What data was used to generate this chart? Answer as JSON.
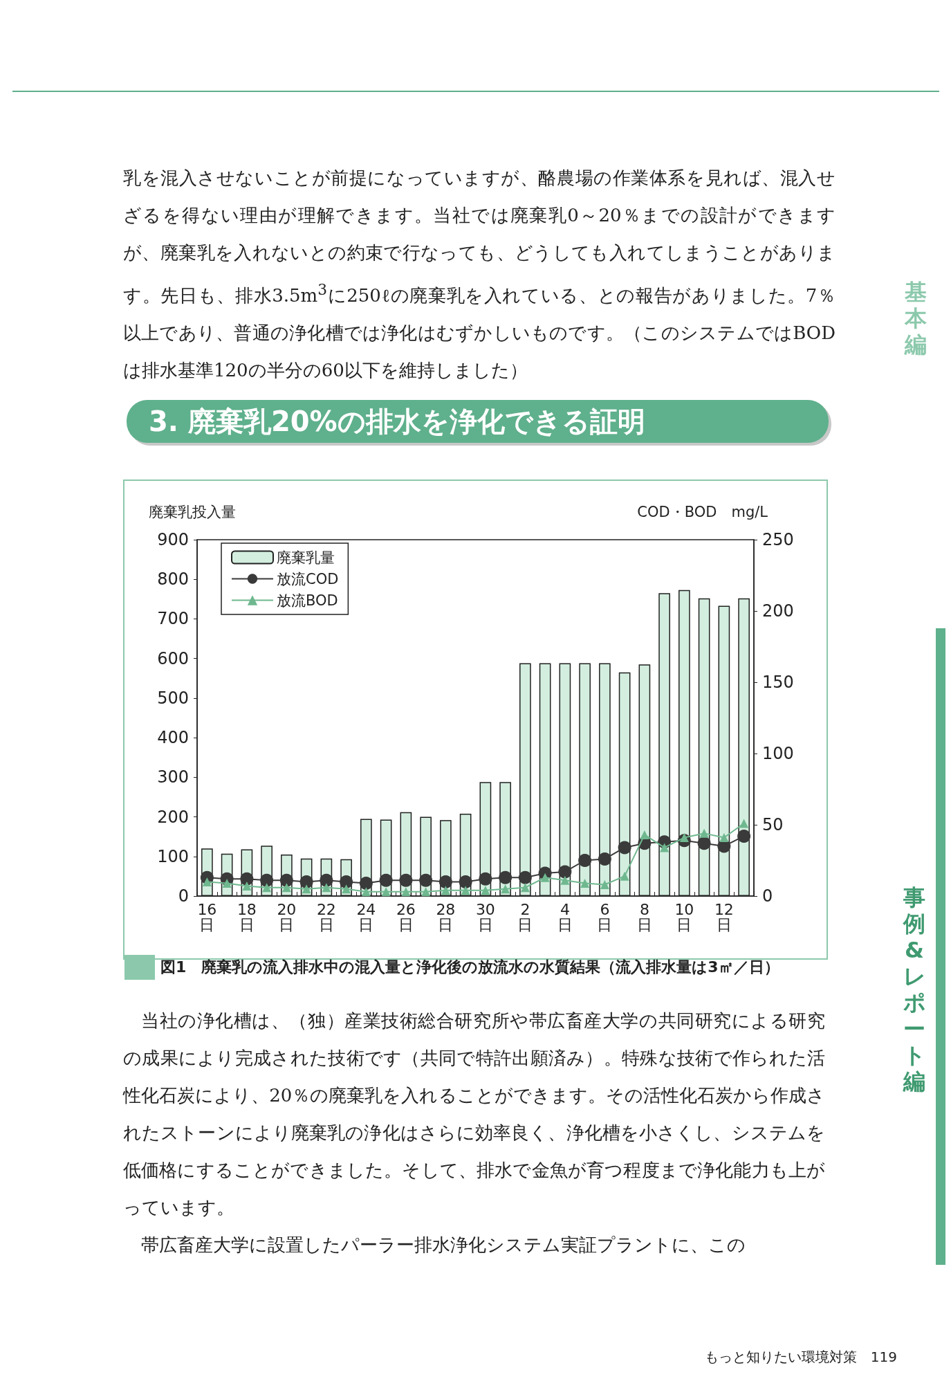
{
  "chart_data": {
    "type": "bar",
    "title": "3. 廃棄乳20%の排水を浄化できる証明",
    "ylabel": "廃棄乳投入量",
    "y2label": "COD・BOD　mg/L",
    "categories": [
      "16\n日",
      null,
      "18\n日",
      null,
      "20\n日",
      null,
      "22\n日",
      null,
      "24\n日",
      null,
      "26\n日",
      null,
      "28\n日",
      null,
      "30\n日",
      null,
      "2\n日",
      null,
      "4\n日",
      null,
      "6\n日",
      null,
      "8\n日",
      null,
      "10\n日",
      null,
      "12\n日",
      null
    ],
    "series": [
      {
        "name": "廃棄乳量",
        "color": "#d3eedf",
        "values": [
          120,
          107,
          118,
          127,
          105,
          95,
          95,
          93,
          195,
          193,
          212,
          200,
          192,
          208,
          288,
          288,
          588,
          588,
          588,
          588,
          588,
          565,
          585,
          765,
          773,
          752,
          733,
          752
        ]
      },
      {
        "name": "放流COD",
        "type": "line",
        "axis": "y2",
        "color": "#3a3a3a",
        "marker": "circle",
        "values": [
          13,
          12,
          12,
          11,
          11,
          10,
          11,
          10,
          9,
          11,
          11,
          11,
          10,
          10,
          12,
          13,
          13,
          16,
          17,
          25,
          26,
          34,
          37,
          38,
          39,
          37,
          35,
          42
        ]
      },
      {
        "name": "放流BOD",
        "type": "line",
        "axis": "y2",
        "color": "#6fb88f",
        "marker": "triangle",
        "values": [
          10,
          9,
          7,
          6,
          6,
          5,
          6,
          5,
          3,
          3,
          3,
          3,
          4,
          4,
          4,
          5,
          6,
          13,
          11,
          9,
          8,
          14,
          43,
          34,
          41,
          44,
          41,
          51
        ]
      }
    ],
    "ylim": [
      0,
      900
    ],
    "yticks": [
      0,
      100,
      200,
      300,
      400,
      500,
      600,
      700,
      800,
      900
    ],
    "y2lim": [
      0,
      250
    ],
    "y2ticks": [
      0,
      50,
      100,
      150,
      200,
      250
    ],
    "grid": false,
    "legend": "top left",
    "annotations": [
      "乳を混入させないことが前提になっていますが、酪農場の作業体系を見れば、混入せざるを得ない理由が理解できます。当社では廃棄乳0～20％までの設計ができますが、廃棄乳を入れないとの約束で行なっても、どうしても入れてしまうことがあります。先日も、排水3.5m$^{3}$に250ℓの廃棄乳を入れている、との報告がありました。7％以上であり、普通の浄化槽では浄化はむずかしいものです。（このシステムではBODは排水基準120の半分の60以下を維持しました）",
      "図1　廃棄乳の流入排水中の混入量と浄化後の放流水の水質結果（流入排水量は3㎡／日）",
      "当社の浄化槽は、（独）産業技術総合研究所や帯広畜産大学の共同研究による研究の成果により完成された技術です（共同で特許出願済み）。特殊な技術で作られた活性化石炭により、20％の廃棄乳を入れることができます。その活性化石炭から作成されたストーンにより廃棄乳の浄化はさらに効率良く、浄化槽を小さくし、システムを低価格にすることができました。そして、排水で金魚が育つ程度まで浄化能力も上がっています。",
      "帯広畜産大学に設置したパーラー排水浄化システム実証プラントに、この",
      "基本編",
      "事例&レポート編",
      "もっと知りたい環境対策　119"
    ]
  }
}
